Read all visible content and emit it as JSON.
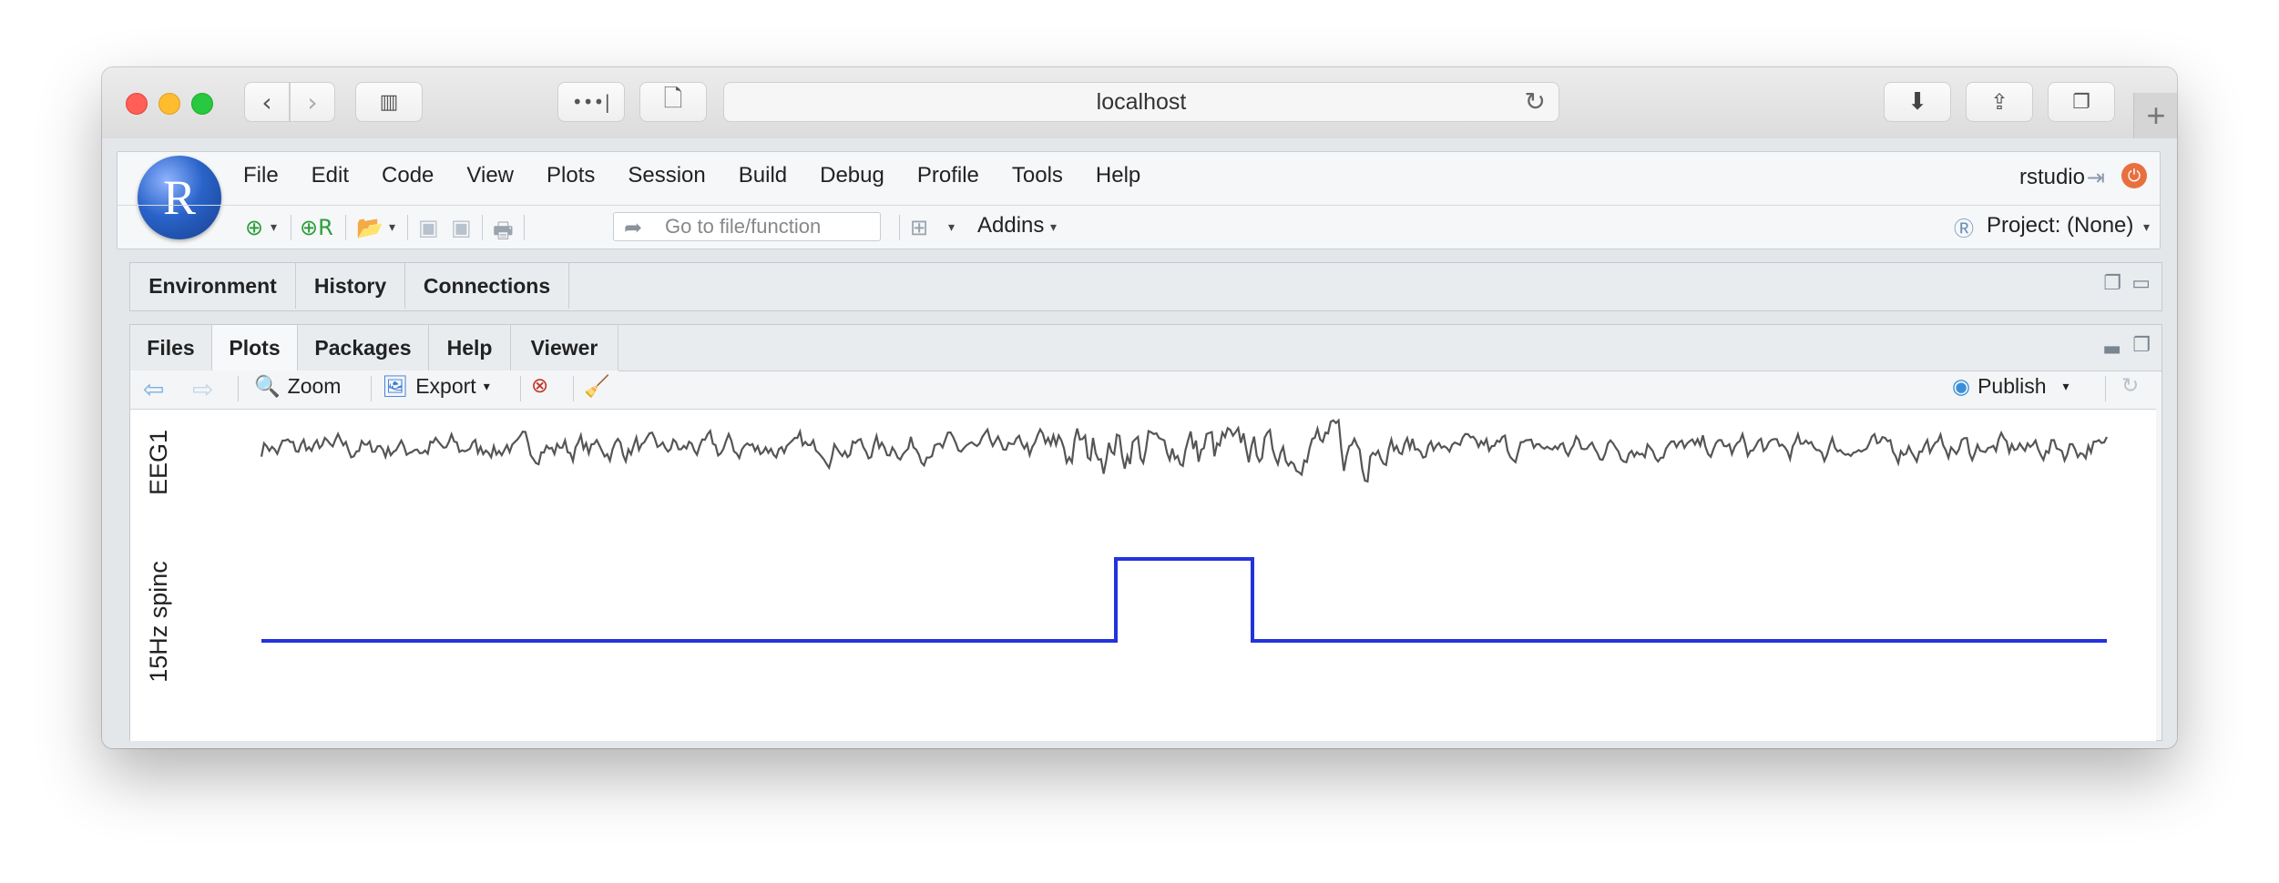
{
  "browser": {
    "address": "localhost"
  },
  "menu": [
    "File",
    "Edit",
    "Code",
    "View",
    "Plots",
    "Session",
    "Build",
    "Debug",
    "Profile",
    "Tools",
    "Help"
  ],
  "user": "rstudio",
  "toolbar": {
    "goto_placeholder": "Go to file/function",
    "addins_label": "Addins",
    "project_label": "Project: (None)"
  },
  "top_pane": {
    "tabs": [
      "Environment",
      "History",
      "Connections"
    ]
  },
  "bottom_pane": {
    "tabs": [
      "Files",
      "Plots",
      "Packages",
      "Help",
      "Viewer"
    ],
    "active_tab": "Plots",
    "zoom_label": "Zoom",
    "export_label": "Export",
    "publish_label": "Publish"
  },
  "chart_data": {
    "type": "line",
    "panels": [
      {
        "ylabel": "EEG1",
        "color": "#555555"
      },
      {
        "ylabel": "15Hz spinc",
        "color": "#2233dd",
        "x": [
          0,
          0.463,
          0.463,
          0.537,
          0.537,
          1
        ],
        "values": [
          0,
          0,
          1,
          1,
          0,
          0
        ]
      }
    ]
  }
}
